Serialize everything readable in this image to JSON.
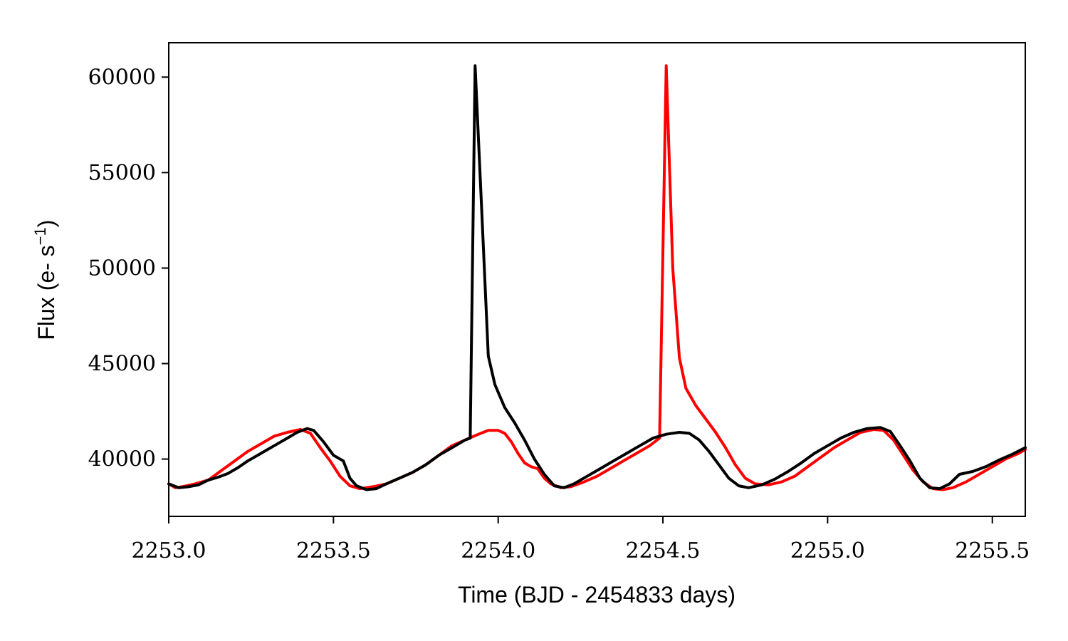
{
  "chart_data": {
    "type": "line",
    "title": "",
    "xlabel": "Time (BJD - 2454833 days)",
    "ylabel_main": "Flux (e- s",
    "ylabel_sup": "−1",
    "ylabel_close": ")",
    "xlim": [
      2253.0,
      2255.6
    ],
    "ylim": [
      37000,
      61800
    ],
    "xticks": [
      2253.0,
      2253.5,
      2254.0,
      2254.5,
      2255.0,
      2255.5
    ],
    "xtick_labels": [
      "2253.0",
      "2253.5",
      "2254.0",
      "2254.5",
      "2255.0",
      "2255.5"
    ],
    "yticks": [
      40000,
      45000,
      50000,
      55000,
      60000
    ],
    "ytick_labels": [
      "40000",
      "45000",
      "50000",
      "55000",
      "60000"
    ],
    "grid": false,
    "series": [
      {
        "color": "#ff0000",
        "x": [
          2253.0,
          2253.02,
          2253.04,
          2253.08,
          2253.12,
          2253.16,
          2253.2,
          2253.24,
          2253.28,
          2253.32,
          2253.36,
          2253.4,
          2253.43,
          2253.46,
          2253.49,
          2253.52,
          2253.55,
          2253.58,
          2253.62,
          2253.66,
          2253.7,
          2253.74,
          2253.78,
          2253.82,
          2253.86,
          2253.9,
          2253.94,
          2253.97,
          2254.0,
          2254.02,
          2254.04,
          2254.06,
          2254.08,
          2254.1,
          2254.12,
          2254.14,
          2254.16,
          2254.19,
          2254.22,
          2254.26,
          2254.3,
          2254.34,
          2254.38,
          2254.42,
          2254.46,
          2254.49,
          2254.51,
          2254.53,
          2254.55,
          2254.57,
          2254.6,
          2254.63,
          2254.66,
          2254.69,
          2254.72,
          2254.75,
          2254.78,
          2254.82,
          2254.86,
          2254.9,
          2254.94,
          2254.98,
          2255.02,
          2255.06,
          2255.1,
          2255.14,
          2255.17,
          2255.2,
          2255.23,
          2255.26,
          2255.29,
          2255.32,
          2255.35,
          2255.38,
          2255.42,
          2255.46,
          2255.5,
          2255.54,
          2255.58,
          2255.6
        ],
        "y": [
          38700,
          38500,
          38550,
          38700,
          38900,
          39400,
          39900,
          40400,
          40800,
          41200,
          41400,
          41550,
          41350,
          40600,
          39900,
          39100,
          38600,
          38450,
          38550,
          38700,
          39000,
          39300,
          39700,
          40200,
          40700,
          41000,
          41300,
          41500,
          41500,
          41350,
          40900,
          40300,
          39800,
          39600,
          39500,
          39000,
          38700,
          38500,
          38550,
          38800,
          39100,
          39500,
          39900,
          40300,
          40700,
          41100,
          60600,
          50000,
          45300,
          43700,
          42800,
          42100,
          41400,
          40600,
          39700,
          39000,
          38700,
          38650,
          38800,
          39100,
          39600,
          40100,
          40600,
          41000,
          41400,
          41550,
          41500,
          41000,
          40200,
          39400,
          38800,
          38450,
          38400,
          38500,
          38800,
          39200,
          39600,
          40000,
          40300,
          40500
        ]
      },
      {
        "color": "#000000",
        "x": [
          2253.0,
          2253.03,
          2253.06,
          2253.09,
          2253.12,
          2253.15,
          2253.18,
          2253.21,
          2253.24,
          2253.28,
          2253.32,
          2253.36,
          2253.39,
          2253.42,
          2253.44,
          2253.47,
          2253.5,
          2253.53,
          2253.55,
          2253.57,
          2253.6,
          2253.63,
          2253.66,
          2253.7,
          2253.74,
          2253.78,
          2253.82,
          2253.86,
          2253.9,
          2253.915,
          2253.93,
          2253.95,
          2253.97,
          2253.99,
          2254.02,
          2254.05,
          2254.08,
          2254.11,
          2254.14,
          2254.17,
          2254.2,
          2254.23,
          2254.27,
          2254.31,
          2254.35,
          2254.39,
          2254.43,
          2254.47,
          2254.51,
          2254.55,
          2254.58,
          2254.61,
          2254.64,
          2254.67,
          2254.7,
          2254.73,
          2254.76,
          2254.8,
          2254.84,
          2254.88,
          2254.92,
          2254.96,
          2255.0,
          2255.04,
          2255.08,
          2255.12,
          2255.16,
          2255.19,
          2255.22,
          2255.25,
          2255.28,
          2255.31,
          2255.34,
          2255.37,
          2255.4,
          2255.44,
          2255.48,
          2255.52,
          2255.56,
          2255.6
        ],
        "y": [
          38700,
          38500,
          38550,
          38650,
          38900,
          39050,
          39250,
          39550,
          39900,
          40300,
          40700,
          41100,
          41400,
          41600,
          41500,
          40900,
          40200,
          39900,
          39000,
          38600,
          38400,
          38450,
          38700,
          39000,
          39300,
          39700,
          40200,
          40600,
          41000,
          41100,
          60600,
          53000,
          45400,
          43900,
          42700,
          41900,
          41000,
          40000,
          39200,
          38600,
          38500,
          38700,
          39100,
          39500,
          39900,
          40300,
          40700,
          41100,
          41300,
          41400,
          41350,
          41000,
          40400,
          39700,
          39000,
          38600,
          38500,
          38650,
          38950,
          39350,
          39800,
          40300,
          40700,
          41100,
          41400,
          41600,
          41650,
          41450,
          40700,
          39900,
          39000,
          38500,
          38450,
          38700,
          39200,
          39350,
          39600,
          39950,
          40250,
          40600
        ]
      }
    ]
  }
}
